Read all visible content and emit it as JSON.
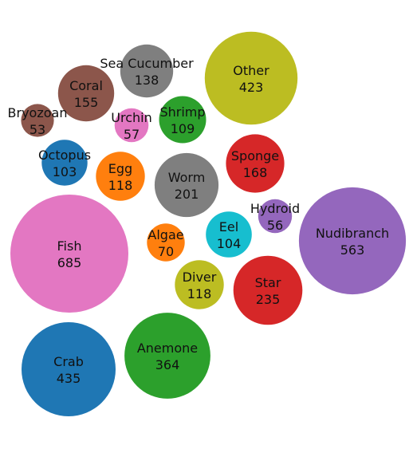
{
  "chart_data": {
    "type": "bubble",
    "title": "",
    "series": [
      {
        "name": "Fish",
        "value": 685,
        "color": "#e377c2"
      },
      {
        "name": "Nudibranch",
        "value": 563,
        "color": "#9467bd"
      },
      {
        "name": "Crab",
        "value": 435,
        "color": "#1f77b4"
      },
      {
        "name": "Other",
        "value": 423,
        "color": "#bcbd22"
      },
      {
        "name": "Anemone",
        "value": 364,
        "color": "#2ca02c"
      },
      {
        "name": "Star",
        "value": 235,
        "color": "#d62728"
      },
      {
        "name": "Worm",
        "value": 201,
        "color": "#7f7f7f"
      },
      {
        "name": "Sponge",
        "value": 168,
        "color": "#d62728"
      },
      {
        "name": "Coral",
        "value": 155,
        "color": "#8c564b"
      },
      {
        "name": "Sea Cucumber",
        "value": 138,
        "color": "#7f7f7f"
      },
      {
        "name": "Egg",
        "value": 118,
        "color": "#ff7f0e"
      },
      {
        "name": "Diver",
        "value": 118,
        "color": "#bcbd22"
      },
      {
        "name": "Shrimp",
        "value": 109,
        "color": "#2ca02c"
      },
      {
        "name": "Eel",
        "value": 104,
        "color": "#17becf"
      },
      {
        "name": "Octopus",
        "value": 103,
        "color": "#1f77b4"
      },
      {
        "name": "Algae",
        "value": 70,
        "color": "#ff7f0e"
      },
      {
        "name": "Urchin",
        "value": 57,
        "color": "#e377c2"
      },
      {
        "name": "Hydroid",
        "value": 56,
        "color": "#9467bd"
      },
      {
        "name": "Bryozoan",
        "value": 53,
        "color": "#8c564b"
      }
    ]
  }
}
